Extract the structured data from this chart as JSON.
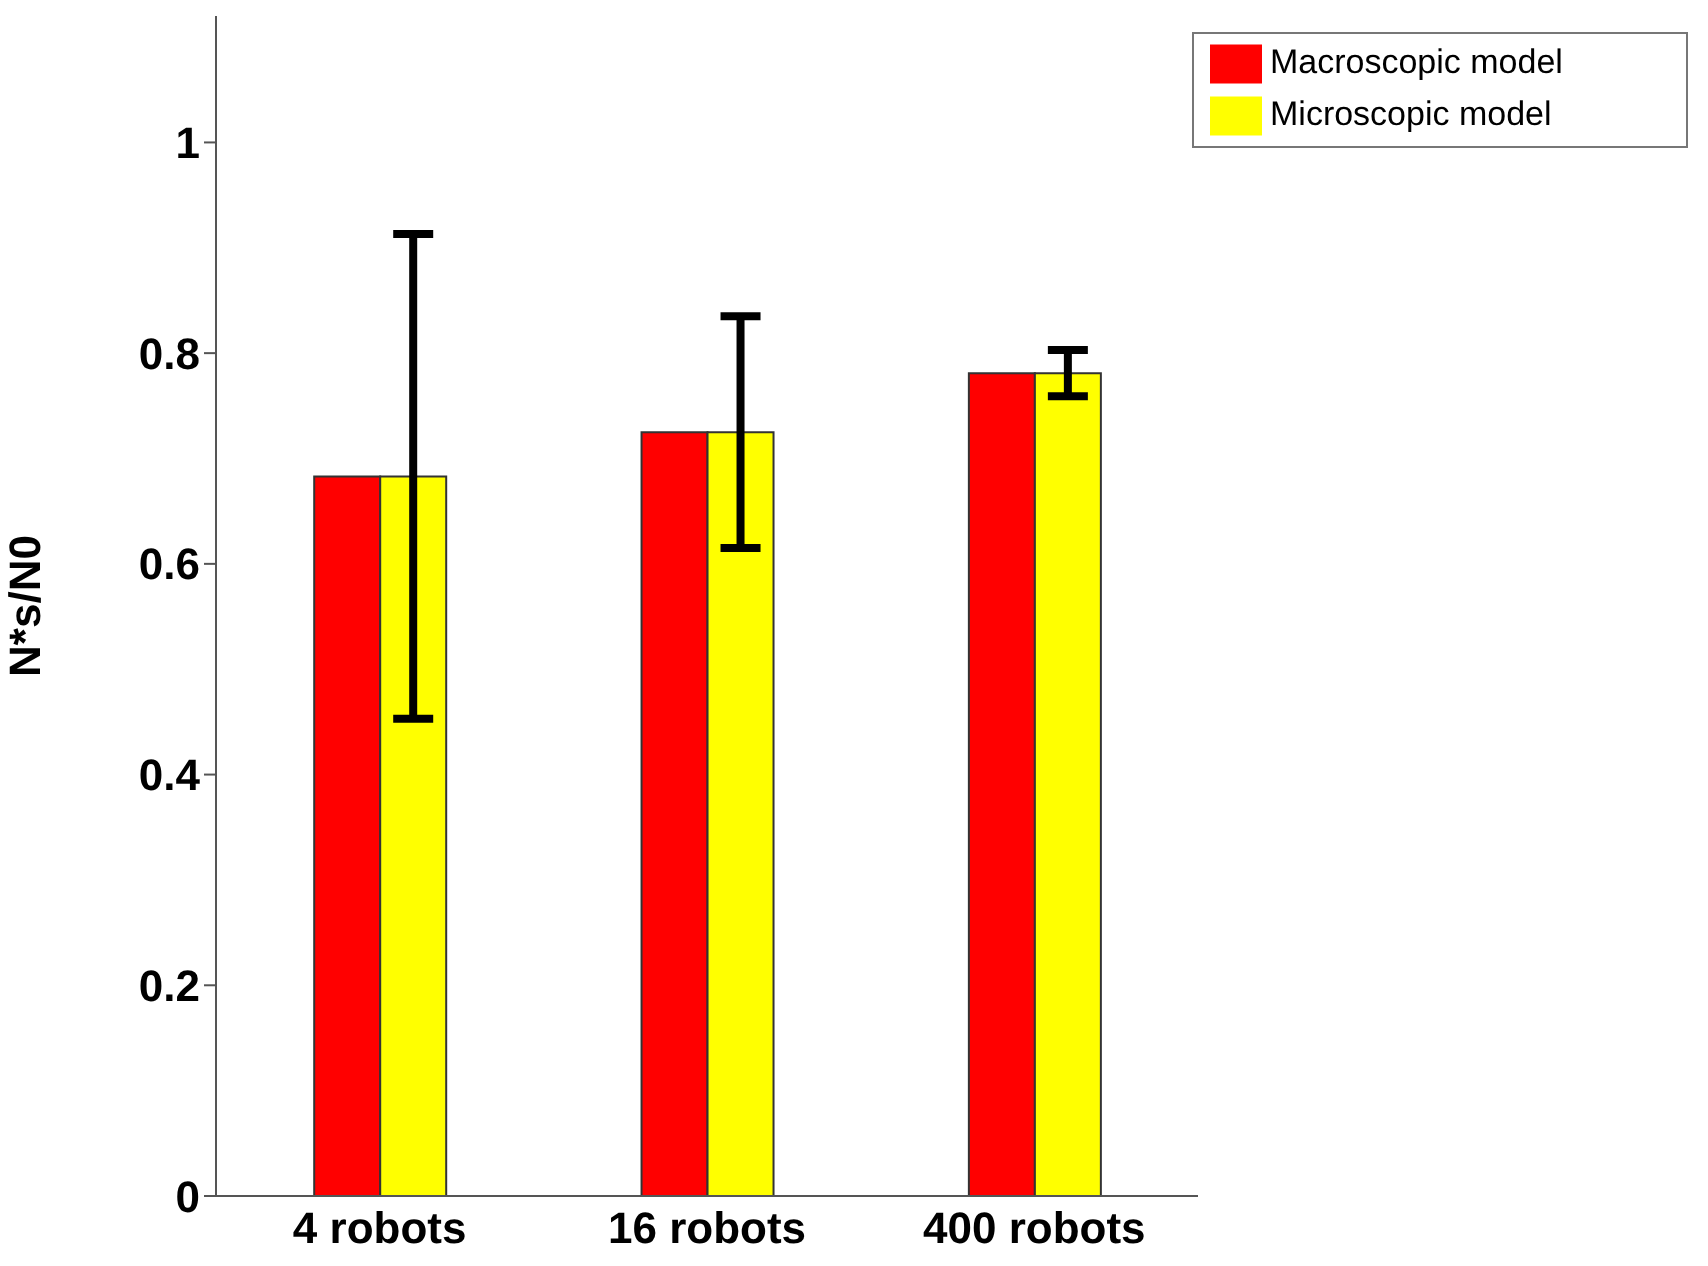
{
  "chart_data": {
    "type": "bar",
    "ylabel": "N*s/N0",
    "categories": [
      "4  robots",
      "16 robots",
      "400 robots"
    ],
    "series": [
      {
        "name": "Macroscopic model",
        "color": "#ff0000",
        "values": [
          0.683,
          0.725,
          0.781
        ]
      },
      {
        "name": "Microscopic model",
        "color": "#ffff00",
        "values": [
          0.683,
          0.725,
          0.781
        ],
        "errors": [
          0.23,
          0.11,
          0.022
        ]
      }
    ],
    "ylim": [
      0,
      1.12
    ],
    "yticks": [
      0,
      0.2,
      0.4,
      0.6,
      0.8,
      1
    ],
    "legend": "top right",
    "grid": false
  }
}
